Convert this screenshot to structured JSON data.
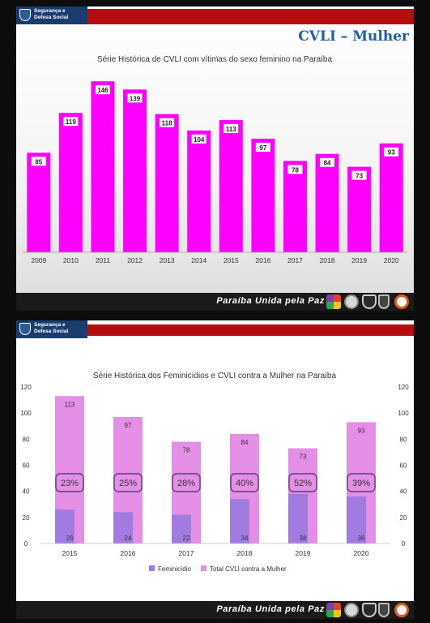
{
  "header": {
    "org_line1": "Segurança e",
    "org_line2": "Defesa Social"
  },
  "badge": "CVLI – Mulher",
  "footer": {
    "slogan": "Paraíba Unida pela Paz"
  },
  "colors": {
    "magenta": "#ff00ff",
    "light_magenta": "#e58ee5",
    "purple": "#a27be0",
    "header_red": "#b50d0d",
    "badge_blue": "#1f5fa8"
  },
  "chart_data": [
    {
      "type": "bar",
      "title": "Série Histórica de CVLI com vítimas do sexo feminino na Paraíba",
      "categories": [
        "2009",
        "2010",
        "2011",
        "2012",
        "2013",
        "2014",
        "2015",
        "2016",
        "2017",
        "2018",
        "2019",
        "2020"
      ],
      "values": [
        85,
        119,
        146,
        139,
        118,
        104,
        113,
        97,
        78,
        84,
        73,
        93
      ],
      "xlabel": "",
      "ylabel": "",
      "ylim": [
        0,
        160
      ],
      "grid": false
    },
    {
      "type": "bar",
      "title": "Série Histórica dos Feminicídios e CVLI contra a Mulher na Paraíba",
      "categories": [
        "2015",
        "2016",
        "2017",
        "2018",
        "2019",
        "2020"
      ],
      "series": [
        {
          "name": "Feminicídio",
          "values": [
            26,
            24,
            22,
            34,
            38,
            36
          ],
          "color": "#a27be0"
        },
        {
          "name": "Total CVLI contra a Mulher",
          "values": [
            113,
            97,
            78,
            84,
            73,
            93
          ],
          "color": "#e58ee5"
        }
      ],
      "percent_labels": [
        "23%",
        "25%",
        "28%",
        "40%",
        "52%",
        "39%"
      ],
      "yticks": [
        "0",
        "20",
        "40",
        "60",
        "80",
        "100",
        "120"
      ],
      "ylim": [
        0,
        120
      ],
      "y2ticks": [
        "0",
        "20",
        "40",
        "60",
        "80",
        "100",
        "120"
      ],
      "legend": "bottom",
      "grid": false
    }
  ]
}
